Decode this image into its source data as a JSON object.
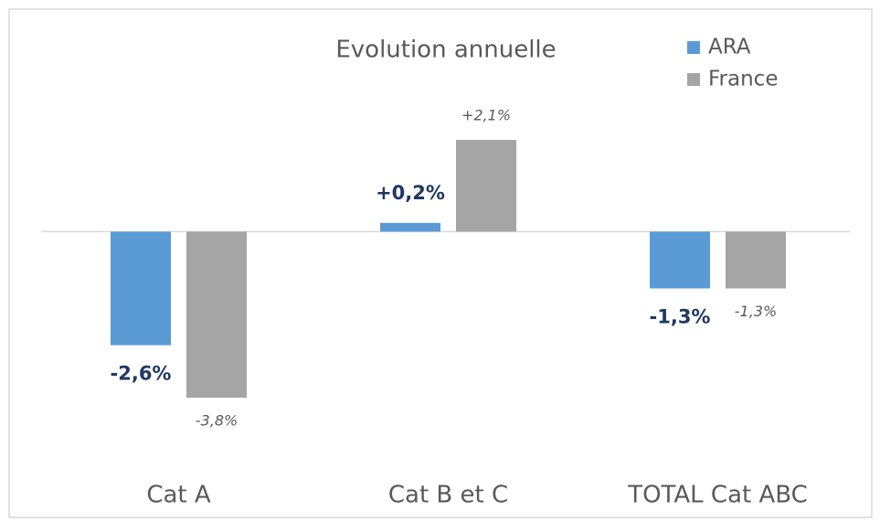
{
  "chart_data": {
    "type": "bar",
    "title": "Evolution annuelle",
    "categories": [
      "Cat A",
      "Cat B et C",
      "TOTAL Cat ABC"
    ],
    "series": [
      {
        "name": "ARA",
        "color": "#5b9bd5",
        "values": [
          -2.6,
          0.2,
          -1.3
        ],
        "value_labels": [
          "-2,6%",
          "+0,2%",
          "-1,3%"
        ]
      },
      {
        "name": "France",
        "color": "#a5a5a5",
        "values": [
          -3.8,
          2.1,
          -1.3
        ],
        "value_labels": [
          "-3,8%",
          "+2,1%",
          "-1,3%"
        ]
      }
    ],
    "legend": "top-right"
  }
}
